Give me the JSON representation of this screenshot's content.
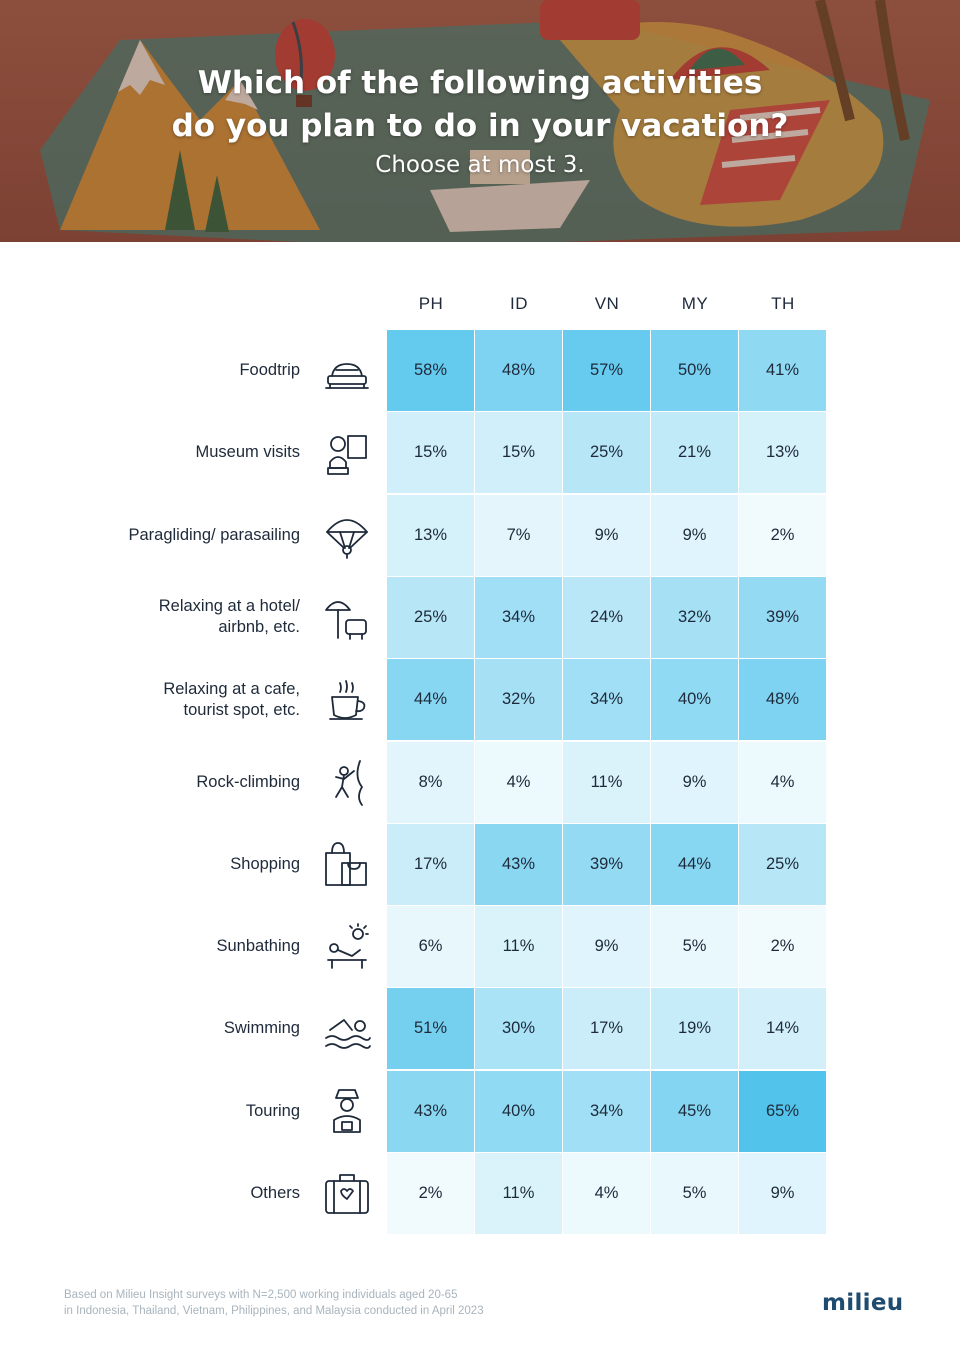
{
  "header": {
    "title_line1": "Which of the following activities",
    "title_line2": "do you plan to do in your vacation?",
    "subtitle": "Choose at most 3."
  },
  "chart_data": {
    "type": "heatmap",
    "columns": [
      "PH",
      "ID",
      "VN",
      "MY",
      "TH"
    ],
    "unit": "%",
    "rows": [
      {
        "label_lines": [
          "Foodtrip"
        ],
        "icon": "sushi-icon",
        "values": [
          58,
          48,
          57,
          50,
          41
        ]
      },
      {
        "label_lines": [
          "Museum visits"
        ],
        "icon": "museum-bust-icon",
        "values": [
          15,
          15,
          25,
          21,
          13
        ]
      },
      {
        "label_lines": [
          "Paragliding/ parasailing"
        ],
        "icon": "parachute-icon",
        "values": [
          13,
          7,
          9,
          9,
          2
        ]
      },
      {
        "label_lines": [
          "Relaxing at a hotel/",
          "airbnb, etc."
        ],
        "icon": "beach-chair-umbrella-icon",
        "values": [
          25,
          34,
          24,
          32,
          39
        ]
      },
      {
        "label_lines": [
          "Relaxing at a cafe,",
          "tourist spot, etc."
        ],
        "icon": "coffee-cup-icon",
        "values": [
          44,
          32,
          34,
          40,
          48
        ]
      },
      {
        "label_lines": [
          "Rock-climbing"
        ],
        "icon": "rock-climber-icon",
        "values": [
          8,
          4,
          11,
          9,
          4
        ]
      },
      {
        "label_lines": [
          "Shopping"
        ],
        "icon": "shopping-bag-icon",
        "values": [
          17,
          43,
          39,
          44,
          25
        ]
      },
      {
        "label_lines": [
          "Sunbathing"
        ],
        "icon": "sunbathing-icon",
        "values": [
          6,
          11,
          9,
          5,
          2
        ]
      },
      {
        "label_lines": [
          "Swimming"
        ],
        "icon": "swimmer-icon",
        "values": [
          51,
          30,
          17,
          19,
          14
        ]
      },
      {
        "label_lines": [
          "Touring"
        ],
        "icon": "tourist-icon",
        "values": [
          43,
          40,
          34,
          45,
          65
        ]
      },
      {
        "label_lines": [
          "Others"
        ],
        "icon": "suitcase-icon",
        "values": [
          2,
          11,
          4,
          5,
          9
        ]
      }
    ],
    "color_scale": {
      "low": "#f6fcfe",
      "high": "#52c4ec",
      "min": 0,
      "max": 65
    }
  },
  "footer": {
    "note_line1": "Based on Milieu Insight surveys with N=2,500 working individuals aged 20-65",
    "note_line2": "in Indonesia, Thailand, Vietnam, Philippines, and Malaysia conducted in April 2023",
    "brand": "milieu"
  }
}
